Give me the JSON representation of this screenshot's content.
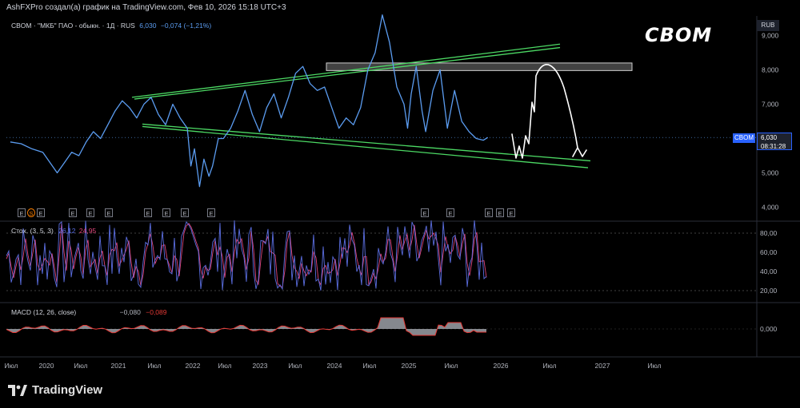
{
  "header": {
    "attribution": "AshFXPro создал(а) график на TradingView.com, Фев 10, 2026 15:18 UTC+3"
  },
  "legend": {
    "symbol": "CBOM · \"МКБ\" ПАО - обыкн. · 1Д · RUS",
    "last": "6,030",
    "change": "−0,074 (−1,21%)",
    "stoch_title": "Стох. (3, 5, 3)",
    "stoch_k": "26,12",
    "stoch_d": "24,95",
    "macd_title": "MACD (12, 26, close)",
    "macd_hist": "−0,080",
    "macd_signal": "−0,089"
  },
  "annotation_text": "CBOM",
  "price_badge": {
    "symbol": "CBOM",
    "price": "6,030",
    "countdown": "08:31:28",
    "currency": "RUB"
  },
  "event_markers": [
    {
      "label": "E"
    },
    {
      "label": "S"
    },
    {
      "label": "E"
    },
    {
      "label": "E"
    },
    {
      "label": "E"
    },
    {
      "label": "E"
    },
    {
      "label": "E"
    },
    {
      "label": "E"
    },
    {
      "label": "E"
    },
    {
      "label": "E"
    },
    {
      "label": "E"
    },
    {
      "label": "E"
    },
    {
      "label": "E"
    },
    {
      "label": "E"
    },
    {
      "label": "E"
    }
  ],
  "brand": "TradingView",
  "colors": {
    "price_line": "#5b9cf0",
    "trend_lines": "#4cd964",
    "stoch_k": "#5b6ee1",
    "stoch_d": "#e0457b",
    "macd_fill": "#b2b5be",
    "macd_line": "#e53935",
    "resistance_zone": "#9e9e9e",
    "forecast": "#ffffff"
  },
  "chart_data": [
    {
      "type": "line",
      "title": "CBOM · \"МКБ\" ПАО - обыкн. · 1Д · RUS",
      "ylabel": "RUB",
      "ylim": [
        3.6,
        9.6
      ],
      "y_ticks": [
        "9,000",
        "8,000",
        "7,000",
        "6,000",
        "5,000",
        "4,000"
      ],
      "x_ticks": [
        "Июл",
        "2020",
        "Июл",
        "2021",
        "Июл",
        "2022",
        "Июл",
        "2023",
        "Июл",
        "2024",
        "Июл",
        "2025",
        "Июл",
        "2026",
        "Июл",
        "2027",
        "Июл"
      ],
      "series": [
        {
          "x": [
            2019.5,
            2019.65,
            2019.8,
            2019.95,
            2020.05,
            2020.15,
            2020.25,
            2020.35,
            2020.45,
            2020.55,
            2020.65,
            2020.75,
            2020.85,
            2020.95,
            2021.05,
            2021.15,
            2021.25,
            2021.35,
            2021.45,
            2021.55,
            2021.65,
            2021.75,
            2021.85,
            2021.95,
            2022.0,
            2022.05,
            2022.12,
            2022.18,
            2022.25,
            2022.3,
            2022.38,
            2022.45,
            2022.55,
            2022.65,
            2022.75,
            2022.85,
            2022.95,
            2023.05,
            2023.15,
            2023.25,
            2023.35,
            2023.45,
            2023.55,
            2023.65,
            2023.75,
            2023.85,
            2023.95,
            2024.05,
            2024.15,
            2024.25,
            2024.35,
            2024.45,
            2024.55,
            2024.65,
            2024.75,
            2024.85,
            2024.95,
            2025.0,
            2025.05,
            2025.12,
            2025.2,
            2025.25,
            2025.35,
            2025.45,
            2025.55,
            2025.65,
            2025.75,
            2025.85,
            2025.95,
            2026.05,
            2026.11
          ],
          "values": [
            5.9,
            5.85,
            5.7,
            5.6,
            5.3,
            5.0,
            5.3,
            5.6,
            5.5,
            5.9,
            6.2,
            6.0,
            6.4,
            6.8,
            7.1,
            6.9,
            6.6,
            7.0,
            7.2,
            6.7,
            6.4,
            7.0,
            6.6,
            6.3,
            5.2,
            5.7,
            4.6,
            5.4,
            4.9,
            5.2,
            6.0,
            6.0,
            6.3,
            6.8,
            7.4,
            6.7,
            6.2,
            6.9,
            7.3,
            6.6,
            7.2,
            7.9,
            8.1,
            7.6,
            7.4,
            7.5,
            6.9,
            6.3,
            6.6,
            6.4,
            6.9,
            8.0,
            8.5,
            9.6,
            8.8,
            7.5,
            7.0,
            6.3,
            7.3,
            8.1,
            6.8,
            6.2,
            7.4,
            8.0,
            6.3,
            7.4,
            6.5,
            6.2,
            6.0,
            5.95,
            6.03
          ]
        }
      ]
    },
    {
      "type": "line",
      "title": "Стох. (3, 5, 3)",
      "ylim": [
        15,
        95
      ],
      "y_ticks": [
        "80,00",
        "60,00",
        "40,00",
        "20,00"
      ],
      "series": [
        {
          "name": "%K",
          "values": [
            26.12
          ]
        },
        {
          "name": "%D",
          "values": [
            24.95
          ]
        }
      ]
    },
    {
      "type": "area",
      "title": "MACD (12, 26, close)",
      "y_ticks": [
        "0,000"
      ],
      "series": [
        {
          "name": "Histogram",
          "values": [
            -0.08
          ]
        },
        {
          "name": "Signal",
          "values": [
            -0.089
          ]
        }
      ]
    }
  ]
}
